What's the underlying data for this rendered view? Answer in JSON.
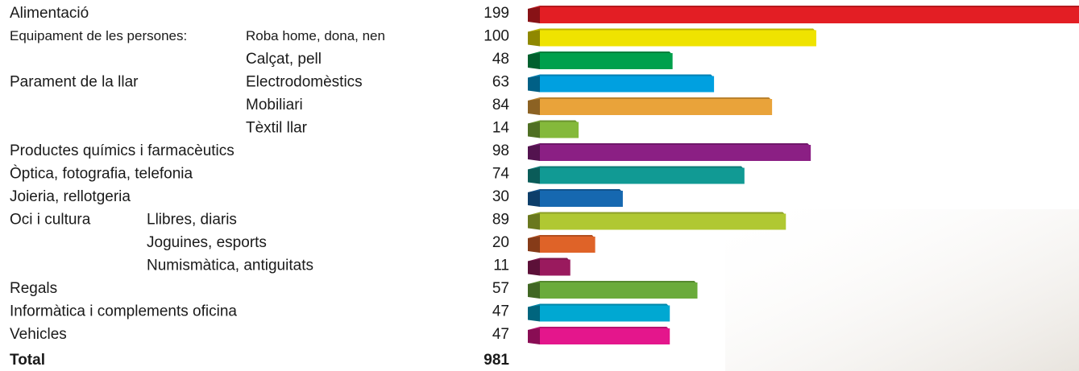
{
  "chart_data": {
    "type": "bar",
    "orientation": "horizontal",
    "categories": [
      "Alimentació",
      "Equipament de les persones:",
      null,
      "Parament de la llar",
      null,
      null,
      "Productes químics i farmacèutics",
      "Òptica, fotografia, telefonia",
      "Joieria, rellotgeria",
      "Oci i cultura",
      null,
      null,
      "Regals",
      "Informàtica i complements oficina",
      "Vehicles"
    ],
    "subcategories": [
      null,
      "Roba home, dona, nen",
      "Calçat, pell",
      "Electrodomèstics",
      "Mobiliari",
      "Tèxtil llar",
      null,
      null,
      null,
      "Llibres, diaris",
      "Joguines, esports",
      "Numismàtica, antiguitats",
      null,
      null,
      null
    ],
    "values": [
      199,
      100,
      48,
      63,
      84,
      14,
      98,
      74,
      30,
      89,
      20,
      11,
      57,
      47,
      47
    ],
    "colors": [
      "#e31e24",
      "#efe300",
      "#00a04c",
      "#00a0e0",
      "#e9a33a",
      "#84b93b",
      "#8b1f84",
      "#119a94",
      "#1668b0",
      "#b0c832",
      "#df6328",
      "#9a1a5e",
      "#6aab3b",
      "#00a8d2",
      "#e4168c"
    ],
    "total_label": "Total",
    "total": 981
  }
}
